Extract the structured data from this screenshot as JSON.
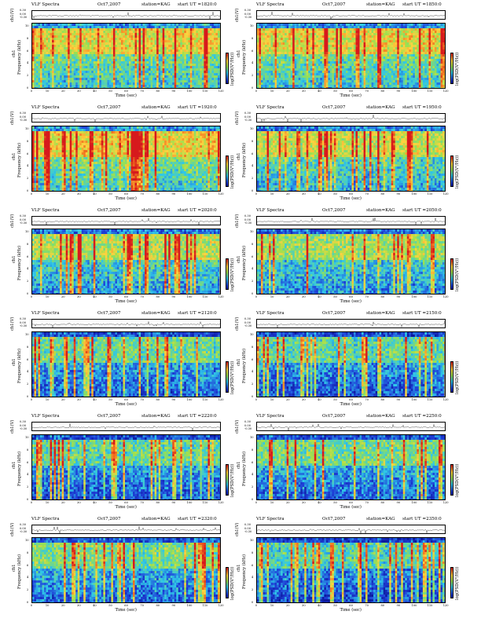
{
  "chart_data": {
    "type": "heatmap",
    "common": {
      "title": "VLF Spectra",
      "date": "Oct7,2007",
      "station": "station=KAG",
      "xlabel": "Time (sec)",
      "ylabel": "Frequency (kHz)",
      "channel_label": "ch1",
      "trace_ylabel": "ch1(V)",
      "trace_ticks": [
        "0.30",
        "0.00",
        "-0.30"
      ],
      "colorbar_label": "log(PSD(V²/Hz))",
      "xticks": [
        "0",
        "10",
        "20",
        "30",
        "40",
        "50",
        "60",
        "70",
        "80",
        "90",
        "100",
        "110",
        "120"
      ],
      "yticks": [
        "0",
        "2",
        "4",
        "6",
        "8",
        "10"
      ],
      "xlim": [
        0,
        120
      ],
      "ylim": [
        0,
        10
      ]
    },
    "panels": [
      {
        "start_ut": "start UT =1820:0",
        "intensity": 0.8
      },
      {
        "start_ut": "start UT =1850:0",
        "intensity": 0.78
      },
      {
        "start_ut": "start UT =1920:0",
        "intensity": 0.82
      },
      {
        "start_ut": "start UT =1950:0",
        "intensity": 0.68
      },
      {
        "start_ut": "start UT =2020:0",
        "intensity": 0.62
      },
      {
        "start_ut": "start UT =2050:0",
        "intensity": 0.58
      },
      {
        "start_ut": "start UT =2120:0",
        "intensity": 0.4
      },
      {
        "start_ut": "start UT =2150:0",
        "intensity": 0.36
      },
      {
        "start_ut": "start UT =2220:0",
        "intensity": 0.38
      },
      {
        "start_ut": "start UT =2250:0",
        "intensity": 0.42
      },
      {
        "start_ut": "start UT =2320:0",
        "intensity": 0.45
      },
      {
        "start_ut": "start UT =2350:0",
        "intensity": 0.3
      }
    ]
  }
}
